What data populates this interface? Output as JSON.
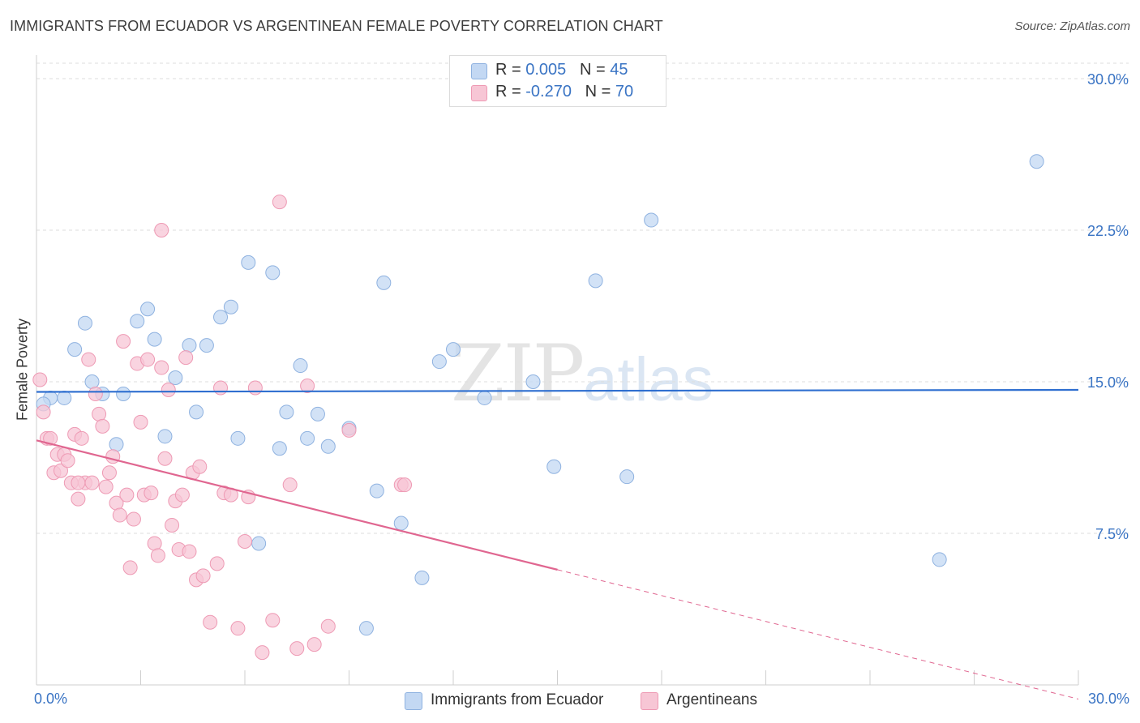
{
  "header": {
    "title": "IMMIGRANTS FROM ECUADOR VS ARGENTINEAN FEMALE POVERTY CORRELATION CHART",
    "source": "Source: ZipAtlas.com"
  },
  "watermark": {
    "part1": "ZIP",
    "part2": "atlas"
  },
  "legend_top": {
    "rows": [
      {
        "r_label": "R = ",
        "r_value": "0.005",
        "n_label": "N = ",
        "n_value": "45"
      },
      {
        "r_label": "R = ",
        "r_value": "-0.270",
        "n_label": "N = ",
        "n_value": "70"
      }
    ]
  },
  "legend_bottom": {
    "items": [
      {
        "label": "Immigrants from Ecuador"
      },
      {
        "label": "Argentineans"
      }
    ]
  },
  "colors": {
    "blue_fill": "#c3d8f3",
    "blue_stroke": "#8fb2e0",
    "blue_line": "#2f6fd0",
    "pink_fill": "#f7c6d5",
    "pink_stroke": "#ee9ab4",
    "pink_line": "#e06690",
    "tick_label": "#3a74c4",
    "grid": "#dedede"
  },
  "chart_data": {
    "type": "scatter",
    "title": "IMMIGRANTS FROM ECUADOR VS ARGENTINEAN FEMALE POVERTY CORRELATION CHART",
    "xlabel": "",
    "ylabel": "Female Poverty",
    "xlim": [
      0,
      30
    ],
    "ylim": [
      0,
      30
    ],
    "x_ticks": [
      "0.0%",
      "30.0%"
    ],
    "y_ticks": [
      {
        "value": 7.5,
        "label": "7.5%"
      },
      {
        "value": 15,
        "label": "15.0%"
      },
      {
        "value": 22.5,
        "label": "22.5%"
      },
      {
        "value": 30,
        "label": "30.0%"
      }
    ],
    "grid": true,
    "legend_placement": "top-center",
    "series": [
      {
        "name": "Immigrants from Ecuador",
        "r": 0.005,
        "n": 45,
        "trend": {
          "x0": 0,
          "y0": 14.5,
          "x1": 30,
          "y1": 14.6
        },
        "points": [
          [
            0.4,
            14.2
          ],
          [
            0.8,
            14.2
          ],
          [
            1.1,
            16.6
          ],
          [
            1.4,
            17.9
          ],
          [
            1.6,
            15.0
          ],
          [
            1.9,
            14.4
          ],
          [
            2.3,
            11.9
          ],
          [
            2.5,
            14.4
          ],
          [
            2.9,
            18.0
          ],
          [
            3.2,
            18.6
          ],
          [
            3.4,
            17.1
          ],
          [
            3.7,
            12.3
          ],
          [
            4.0,
            15.2
          ],
          [
            4.4,
            16.8
          ],
          [
            4.6,
            13.5
          ],
          [
            4.9,
            16.8
          ],
          [
            5.3,
            18.2
          ],
          [
            5.6,
            18.7
          ],
          [
            5.8,
            12.2
          ],
          [
            6.1,
            20.9
          ],
          [
            6.4,
            7.0
          ],
          [
            6.8,
            20.4
          ],
          [
            7.0,
            11.7
          ],
          [
            7.2,
            13.5
          ],
          [
            7.6,
            15.8
          ],
          [
            7.8,
            12.2
          ],
          [
            8.1,
            13.4
          ],
          [
            8.4,
            11.8
          ],
          [
            9.0,
            12.7
          ],
          [
            9.5,
            2.8
          ],
          [
            9.8,
            9.6
          ],
          [
            10.0,
            19.9
          ],
          [
            10.5,
            8.0
          ],
          [
            11.1,
            5.3
          ],
          [
            11.6,
            16.0
          ],
          [
            12.0,
            16.6
          ],
          [
            12.9,
            14.2
          ],
          [
            14.3,
            15.0
          ],
          [
            14.9,
            10.8
          ],
          [
            16.1,
            20.0
          ],
          [
            17.0,
            10.3
          ],
          [
            17.7,
            23.0
          ],
          [
            26.0,
            6.2
          ],
          [
            28.8,
            25.9
          ],
          [
            0.2,
            13.9
          ]
        ]
      },
      {
        "name": "Argentineans",
        "r": -0.27,
        "n": 70,
        "trend": {
          "x0": 0,
          "y0": 12.1,
          "x1": 15,
          "y1": 5.7,
          "dash_x1": 30,
          "dash_y1": -0.7
        },
        "points": [
          [
            0.1,
            15.1
          ],
          [
            0.2,
            13.5
          ],
          [
            0.3,
            12.2
          ],
          [
            0.4,
            12.2
          ],
          [
            0.5,
            10.5
          ],
          [
            0.6,
            11.4
          ],
          [
            0.7,
            10.6
          ],
          [
            0.8,
            11.4
          ],
          [
            0.9,
            11.1
          ],
          [
            1.0,
            10.0
          ],
          [
            1.1,
            12.4
          ],
          [
            1.2,
            9.2
          ],
          [
            1.3,
            12.2
          ],
          [
            1.4,
            10.0
          ],
          [
            1.5,
            16.1
          ],
          [
            1.6,
            10.0
          ],
          [
            1.7,
            14.4
          ],
          [
            1.8,
            13.4
          ],
          [
            1.9,
            12.8
          ],
          [
            2.0,
            9.8
          ],
          [
            2.1,
            10.5
          ],
          [
            2.2,
            11.3
          ],
          [
            2.3,
            9.0
          ],
          [
            2.4,
            8.4
          ],
          [
            2.5,
            17.0
          ],
          [
            2.6,
            9.4
          ],
          [
            2.7,
            5.8
          ],
          [
            2.8,
            8.2
          ],
          [
            2.9,
            15.9
          ],
          [
            3.0,
            13.0
          ],
          [
            3.1,
            9.4
          ],
          [
            3.2,
            16.1
          ],
          [
            3.3,
            9.5
          ],
          [
            3.4,
            7.0
          ],
          [
            3.5,
            6.4
          ],
          [
            3.6,
            15.7
          ],
          [
            3.7,
            11.2
          ],
          [
            3.8,
            14.6
          ],
          [
            3.9,
            7.9
          ],
          [
            4.0,
            9.1
          ],
          [
            4.1,
            6.7
          ],
          [
            4.2,
            9.4
          ],
          [
            4.3,
            16.2
          ],
          [
            4.4,
            6.6
          ],
          [
            4.5,
            10.5
          ],
          [
            4.6,
            5.2
          ],
          [
            4.7,
            10.8
          ],
          [
            4.8,
            5.4
          ],
          [
            5.0,
            3.1
          ],
          [
            5.2,
            6.0
          ],
          [
            5.4,
            9.5
          ],
          [
            5.6,
            9.4
          ],
          [
            5.8,
            2.8
          ],
          [
            6.0,
            7.1
          ],
          [
            6.1,
            9.3
          ],
          [
            6.3,
            14.7
          ],
          [
            6.5,
            1.6
          ],
          [
            6.8,
            3.2
          ],
          [
            7.0,
            23.9
          ],
          [
            7.3,
            9.9
          ],
          [
            7.5,
            1.8
          ],
          [
            7.8,
            14.8
          ],
          [
            8.0,
            2.0
          ],
          [
            8.4,
            2.9
          ],
          [
            9.0,
            12.6
          ],
          [
            10.5,
            9.9
          ],
          [
            3.6,
            22.5
          ],
          [
            1.2,
            10.0
          ],
          [
            5.3,
            14.7
          ],
          [
            10.6,
            9.9
          ]
        ]
      }
    ]
  }
}
